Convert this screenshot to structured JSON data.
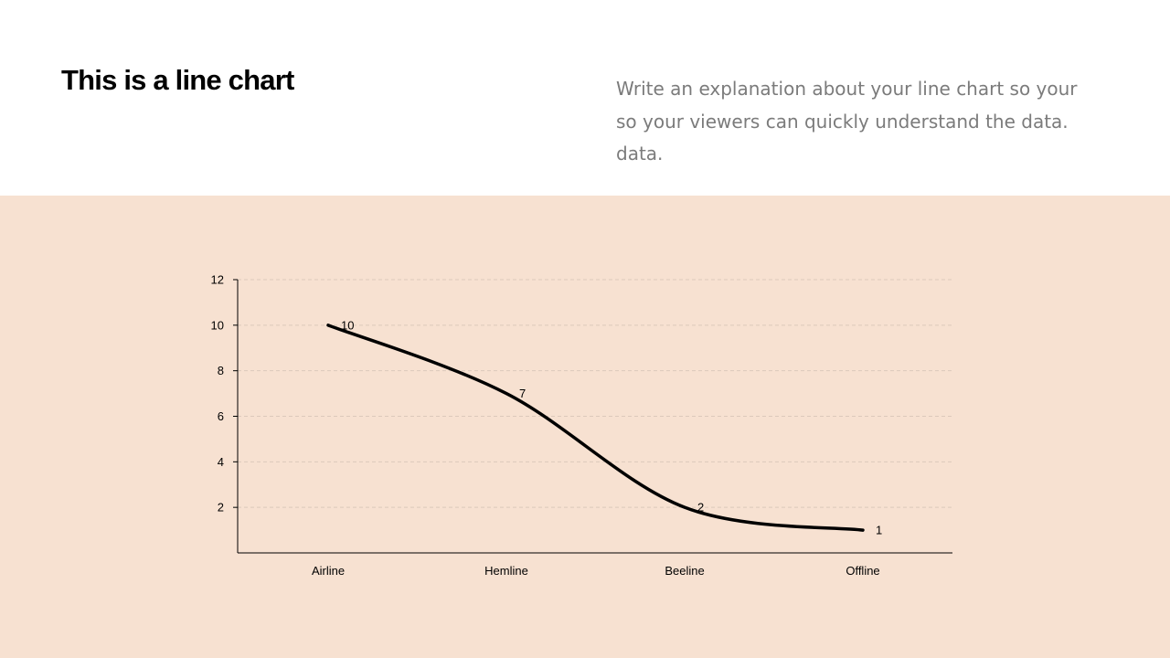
{
  "slide": {
    "title": "This is a line chart",
    "explanation_lines": [
      "Write an explanation about your line chart so your",
      "so your viewers can quickly understand the data.",
      "data."
    ],
    "background_color": "#f7e1d1",
    "header_color": "#ffffff",
    "text_color": "#7b7b7b"
  },
  "chart_data": {
    "type": "line",
    "smooth": true,
    "categories": [
      "Airline",
      "Hemline",
      "Beeline",
      "Offline"
    ],
    "series": [
      {
        "values": [
          10,
          7,
          2,
          1
        ],
        "color": "#000000"
      }
    ],
    "data_labels": [
      "10",
      "7",
      "2",
      "1"
    ],
    "ylim": [
      0,
      12
    ],
    "yticks": [
      2,
      4,
      6,
      8,
      10,
      12
    ],
    "ytick_labels": [
      "2",
      "4",
      "6",
      "8",
      "10",
      "12"
    ],
    "grid": true,
    "grid_style": "dashed",
    "legend": "none"
  }
}
